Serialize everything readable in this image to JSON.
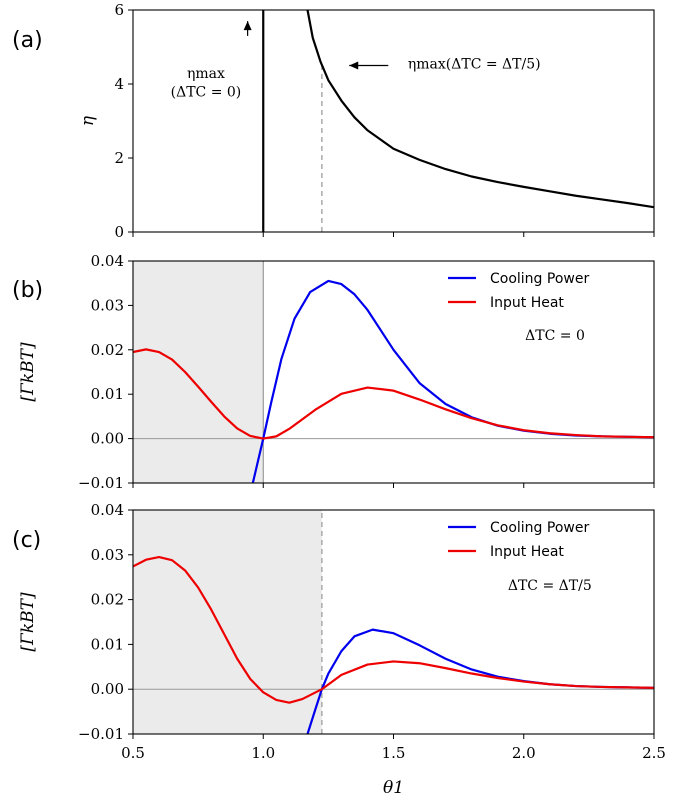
{
  "chart_data": [
    {
      "type": "line",
      "panel_label": "(a)",
      "ylabel": "η",
      "xlabel": "",
      "xlim": [
        0.5,
        2.5
      ],
      "ylim": [
        0,
        6
      ],
      "xticks": [
        "0.5",
        "1.0",
        "1.5",
        "2.0",
        "2.5"
      ],
      "yticks": [
        "0",
        "2",
        "4",
        "6"
      ],
      "series": [
        {
          "color": "#000000",
          "points": [
            [
              1.0,
              0
            ],
            [
              1.0,
              6
            ]
          ]
        },
        {
          "color": "#000000",
          "points": [
            [
              1.17,
              6.0
            ],
            [
              1.19,
              5.25
            ],
            [
              1.22,
              4.6
            ],
            [
              1.25,
              4.1
            ],
            [
              1.3,
              3.55
            ],
            [
              1.35,
              3.1
            ],
            [
              1.4,
              2.75
            ],
            [
              1.45,
              2.5
            ],
            [
              1.5,
              2.25
            ],
            [
              1.6,
              1.95
            ],
            [
              1.7,
              1.7
            ],
            [
              1.8,
              1.5
            ],
            [
              1.9,
              1.35
            ],
            [
              2.0,
              1.22
            ],
            [
              2.1,
              1.1
            ],
            [
              2.2,
              0.98
            ],
            [
              2.3,
              0.88
            ],
            [
              2.4,
              0.78
            ],
            [
              2.5,
              0.67
            ]
          ]
        }
      ],
      "vlines": [
        {
          "x": 1.225,
          "ymin": 0,
          "ymax": 4.6,
          "style": "dashed",
          "color": "#aaaaaa"
        }
      ],
      "annotations": [
        {
          "id": "ann-a1-line1",
          "text": "ηmax",
          "x": 0.78,
          "y": 4.3
        },
        {
          "id": "ann-a1-line2",
          "text": "(ΔTC = 0)",
          "x": 0.78,
          "y": 3.8
        },
        {
          "id": "ann-a2",
          "text": "ηmax(ΔTC = ΔT/5)",
          "x": 1.81,
          "y": 4.55
        }
      ],
      "arrows": [
        {
          "from": [
            0.94,
            5.3
          ],
          "to": [
            0.94,
            5.7
          ]
        },
        {
          "from": [
            1.48,
            4.5
          ],
          "to": [
            1.33,
            4.5
          ]
        }
      ]
    },
    {
      "type": "line",
      "panel_label": "(b)",
      "ylabel": "[ΓkBT]",
      "xlabel": "",
      "xlim": [
        0.5,
        2.5
      ],
      "ylim": [
        -0.01,
        0.04
      ],
      "xticks": [
        "0.5",
        "1.0",
        "1.5",
        "2.0",
        "2.5"
      ],
      "yticks": [
        "−0.01",
        "0.00",
        "0.01",
        "0.02",
        "0.03",
        "0.04"
      ],
      "shade": {
        "x0": 0.5,
        "x1": 1.0,
        "color": "#ebebeb"
      },
      "vlines": [
        {
          "x": 1.0,
          "ymin": -0.01,
          "ymax": 0.04,
          "style": "solid",
          "color": "#888888"
        }
      ],
      "hline": 0,
      "annotation": {
        "text": "ΔTC = 0",
        "x": 2.12,
        "y": 0.0233
      },
      "legend": {
        "position": "top-right"
      },
      "series": [
        {
          "name": "Cooling Power",
          "color": "#0000ee",
          "points": [
            [
              0.96,
              -0.01
            ],
            [
              0.98,
              -0.005
            ],
            [
              1.0,
              0.0
            ],
            [
              1.03,
              0.008
            ],
            [
              1.07,
              0.018
            ],
            [
              1.12,
              0.027
            ],
            [
              1.18,
              0.033
            ],
            [
              1.25,
              0.0355
            ],
            [
              1.3,
              0.0348
            ],
            [
              1.35,
              0.0325
            ],
            [
              1.4,
              0.029
            ],
            [
              1.5,
              0.02
            ],
            [
              1.6,
              0.0125
            ],
            [
              1.7,
              0.0078
            ],
            [
              1.8,
              0.0048
            ],
            [
              1.9,
              0.0029
            ],
            [
              2.0,
              0.0018
            ],
            [
              2.1,
              0.0011
            ],
            [
              2.2,
              0.0007
            ],
            [
              2.3,
              0.0005
            ],
            [
              2.4,
              0.0004
            ],
            [
              2.5,
              0.0003
            ]
          ]
        },
        {
          "name": "Input Heat",
          "color": "#ee0000",
          "points": [
            [
              0.5,
              0.0195
            ],
            [
              0.55,
              0.0201
            ],
            [
              0.6,
              0.0195
            ],
            [
              0.65,
              0.0178
            ],
            [
              0.7,
              0.015
            ],
            [
              0.75,
              0.0117
            ],
            [
              0.8,
              0.0083
            ],
            [
              0.85,
              0.005
            ],
            [
              0.9,
              0.0023
            ],
            [
              0.95,
              0.0006
            ],
            [
              1.0,
              0.0
            ],
            [
              1.05,
              0.0005
            ],
            [
              1.1,
              0.0022
            ],
            [
              1.2,
              0.0065
            ],
            [
              1.3,
              0.0101
            ],
            [
              1.4,
              0.0115
            ],
            [
              1.5,
              0.0108
            ],
            [
              1.6,
              0.0088
            ],
            [
              1.7,
              0.0066
            ],
            [
              1.8,
              0.0046
            ],
            [
              1.9,
              0.003
            ],
            [
              2.0,
              0.0019
            ],
            [
              2.1,
              0.0012
            ],
            [
              2.2,
              0.0008
            ],
            [
              2.3,
              0.0005
            ],
            [
              2.4,
              0.0004
            ],
            [
              2.5,
              0.0003
            ]
          ]
        }
      ]
    },
    {
      "type": "line",
      "panel_label": "(c)",
      "ylabel": "[ΓkBT]",
      "xlabel": "θ1",
      "xlim": [
        0.5,
        2.5
      ],
      "ylim": [
        -0.01,
        0.04
      ],
      "xticks": [
        "0.5",
        "1.0",
        "1.5",
        "2.0",
        "2.5"
      ],
      "yticks": [
        "−0.01",
        "0.00",
        "0.01",
        "0.02",
        "0.03",
        "0.04"
      ],
      "shade": {
        "x0": 0.5,
        "x1": 1.225,
        "color": "#ebebeb"
      },
      "vlines": [
        {
          "x": 1.225,
          "ymin": -0.01,
          "ymax": 0.04,
          "style": "dashed",
          "color": "#aaaaaa"
        }
      ],
      "hline": 0,
      "annotation": {
        "text": "ΔTC = ΔT/5",
        "x": 2.1,
        "y": 0.0233
      },
      "legend": {
        "position": "top-right"
      },
      "series": [
        {
          "name": "Cooling Power",
          "color": "#0000ee",
          "points": [
            [
              1.17,
              -0.01
            ],
            [
              1.2,
              -0.0045
            ],
            [
              1.225,
              0.0
            ],
            [
              1.25,
              0.0035
            ],
            [
              1.3,
              0.0085
            ],
            [
              1.35,
              0.0118
            ],
            [
              1.42,
              0.0133
            ],
            [
              1.5,
              0.0125
            ],
            [
              1.6,
              0.0098
            ],
            [
              1.7,
              0.0068
            ],
            [
              1.8,
              0.0044
            ],
            [
              1.9,
              0.0028
            ],
            [
              2.0,
              0.0018
            ],
            [
              2.1,
              0.0011
            ],
            [
              2.2,
              0.0007
            ],
            [
              2.3,
              0.0005
            ],
            [
              2.4,
              0.0004
            ],
            [
              2.5,
              0.0003
            ]
          ]
        },
        {
          "name": "Input Heat",
          "color": "#ee0000",
          "points": [
            [
              0.5,
              0.0274
            ],
            [
              0.55,
              0.0289
            ],
            [
              0.6,
              0.0295
            ],
            [
              0.65,
              0.0288
            ],
            [
              0.7,
              0.0265
            ],
            [
              0.75,
              0.0227
            ],
            [
              0.8,
              0.0178
            ],
            [
              0.85,
              0.0123
            ],
            [
              0.9,
              0.0068
            ],
            [
              0.95,
              0.0023
            ],
            [
              1.0,
              -0.0007
            ],
            [
              1.05,
              -0.0024
            ],
            [
              1.1,
              -0.003
            ],
            [
              1.15,
              -0.0022
            ],
            [
              1.225,
              0.0
            ],
            [
              1.3,
              0.0032
            ],
            [
              1.4,
              0.0055
            ],
            [
              1.5,
              0.0062
            ],
            [
              1.6,
              0.0058
            ],
            [
              1.7,
              0.0047
            ],
            [
              1.8,
              0.0035
            ],
            [
              1.9,
              0.0025
            ],
            [
              2.0,
              0.0017
            ],
            [
              2.1,
              0.0011
            ],
            [
              2.2,
              0.0007
            ],
            [
              2.3,
              0.0005
            ],
            [
              2.4,
              0.0004
            ],
            [
              2.5,
              0.0003
            ]
          ]
        }
      ]
    }
  ]
}
